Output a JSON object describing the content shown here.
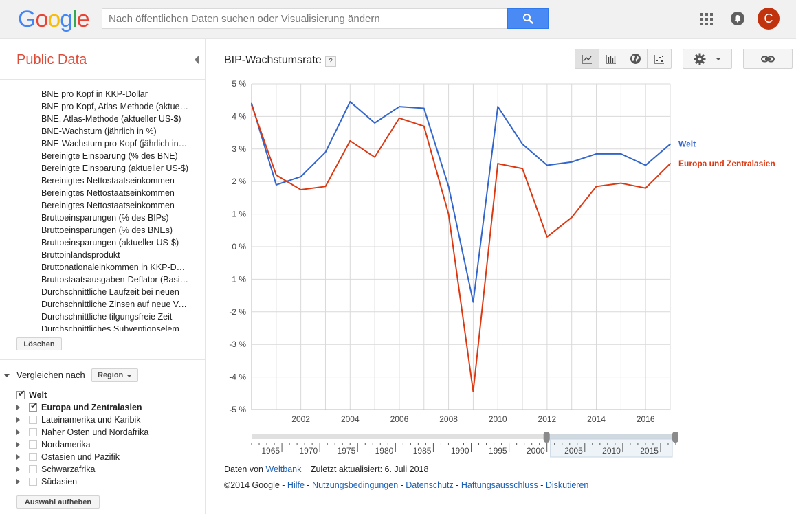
{
  "logo": {
    "letters": [
      "G",
      "o",
      "o",
      "g",
      "l",
      "e"
    ],
    "colors": [
      "#4285f4",
      "#ea4335",
      "#fbbc05",
      "#4285f4",
      "#34a853",
      "#ea4335"
    ]
  },
  "search": {
    "placeholder": "Nach öffentlichen Daten suchen oder Visualisierung ändern",
    "icon": "search-icon"
  },
  "header": {
    "apps_icon": "apps-grid-icon",
    "notifications_icon": "bell-icon",
    "avatar_letter": "C",
    "avatar_color": "#c1330f"
  },
  "sidebar": {
    "title": "Public Data",
    "metrics": [
      "BNE pro Kopf in KKP-Dollar",
      "BNE pro Kopf, Atlas-Methode (aktueller US-$)",
      "BNE, Atlas-Methode (aktueller US-$)",
      "BNE-Wachstum (jährlich in %)",
      "BNE-Wachstum pro Kopf (jährlich in %)",
      "Bereinigte Einsparung (% des BNE)",
      "Bereinigte Einsparung (aktueller US-$)",
      "Bereinigtes Nettostaatseinkommen",
      "Bereinigtes Nettostaatseinkommen",
      "Bereinigtes Nettostaatseinkommen",
      "Bruttoeinsparungen (% des BIPs)",
      "Bruttoeinsparungen (% des BNEs)",
      "Bruttoeinsparungen (aktueller US-$)",
      "Bruttoinlandsprodukt",
      "Bruttonationaleinkommen in KKP-Dollar",
      "Bruttostaatsausgaben-Deflator (Basisjahr)",
      "Durchschnittliche Laufzeit bei neuen",
      "Durchschnittliche Zinsen auf neue Verpflichtungen",
      "Durchschnittliche tilgungsfreie Zeit",
      "Durchschnittliches Subventionselement"
    ],
    "clear_button": "Löschen",
    "compare_label": "Vergleichen nach",
    "compare_dropdown": "Region",
    "entities": [
      {
        "label": "Welt",
        "checked": true,
        "bold": true,
        "expandable": false
      },
      {
        "label": "Europa und Zentralasien",
        "checked": true,
        "bold": true,
        "expandable": true
      },
      {
        "label": "Lateinamerika und Karibik",
        "checked": false,
        "bold": false,
        "expandable": true
      },
      {
        "label": "Naher Osten und Nordafrika",
        "checked": false,
        "bold": false,
        "expandable": true
      },
      {
        "label": "Nordamerika",
        "checked": false,
        "bold": false,
        "expandable": true
      },
      {
        "label": "Ostasien und Pazifik",
        "checked": false,
        "bold": false,
        "expandable": true
      },
      {
        "label": "Schwarzafrika",
        "checked": false,
        "bold": false,
        "expandable": true
      },
      {
        "label": "Südasien",
        "checked": false,
        "bold": false,
        "expandable": true
      }
    ],
    "deselect_button": "Auswahl aufheben"
  },
  "main": {
    "chart_title": "BIP-Wachstumsrate",
    "help_label": "?",
    "toolbar_icons": [
      "line-chart-icon",
      "bar-chart-icon",
      "globe-map-icon",
      "scatter-chart-icon"
    ],
    "settings_icon": "gear-icon",
    "link_icon": "link-icon"
  },
  "chart_data": {
    "type": "line",
    "title": "BIP-Wachstumsrate",
    "x": [
      2000,
      2001,
      2002,
      2003,
      2004,
      2005,
      2006,
      2007,
      2008,
      2009,
      2010,
      2011,
      2012,
      2013,
      2014,
      2015,
      2016,
      2017
    ],
    "series": [
      {
        "name": "Welt",
        "color": "#3366cc",
        "values": [
          4.4,
          1.9,
          2.15,
          2.9,
          4.45,
          3.8,
          4.3,
          4.25,
          1.85,
          -1.7,
          4.3,
          3.15,
          2.5,
          2.6,
          2.85,
          2.85,
          2.5,
          3.15
        ]
      },
      {
        "name": "Europa und Zentralasien",
        "color": "#dc3912",
        "values": [
          4.35,
          2.2,
          1.75,
          1.85,
          3.25,
          2.75,
          3.95,
          3.7,
          1.0,
          -4.45,
          2.55,
          2.4,
          0.3,
          0.9,
          1.85,
          1.95,
          1.8,
          2.55
        ]
      }
    ],
    "ylim": [
      -5,
      5
    ],
    "yticks": [
      5,
      4,
      3,
      2,
      1,
      0,
      -1,
      -2,
      -3,
      -4,
      -5
    ],
    "ytick_labels": [
      "5 %",
      "4 %",
      "3 %",
      "2 %",
      "1 %",
      "0 %",
      "-1 %",
      "-2 %",
      "-3 %",
      "-4 %",
      "-5 %"
    ],
    "xlim": [
      2000,
      2017
    ],
    "xticks": [
      2002,
      2004,
      2006,
      2008,
      2010,
      2012,
      2014,
      2016
    ],
    "xtick_labels": [
      "2002",
      "2004",
      "2006",
      "2008",
      "2010",
      "2012",
      "2014",
      "2016"
    ],
    "grid": true,
    "legend": "right",
    "timeline": {
      "range": [
        1961,
        2017
      ],
      "labels": [
        "1965",
        "1970",
        "1975",
        "1980",
        "1985",
        "1990",
        "1995",
        "2000",
        "2005",
        "2010",
        "2015"
      ],
      "label_years": [
        1965,
        1970,
        1975,
        1980,
        1985,
        1990,
        1995,
        2000,
        2005,
        2010,
        2015
      ],
      "selected": [
        2000,
        2017
      ]
    }
  },
  "footer": {
    "data_from": "Daten von",
    "source_link": "Weltbank",
    "updated": "Zuletzt aktualisiert: 6. Juli 2018",
    "copyright": "©2014 Google - ",
    "links": [
      "Hilfe",
      "Nutzungsbedingungen",
      "Datenschutz",
      "Haftungsausschluss",
      "Diskutieren"
    ],
    "separator": " - "
  }
}
